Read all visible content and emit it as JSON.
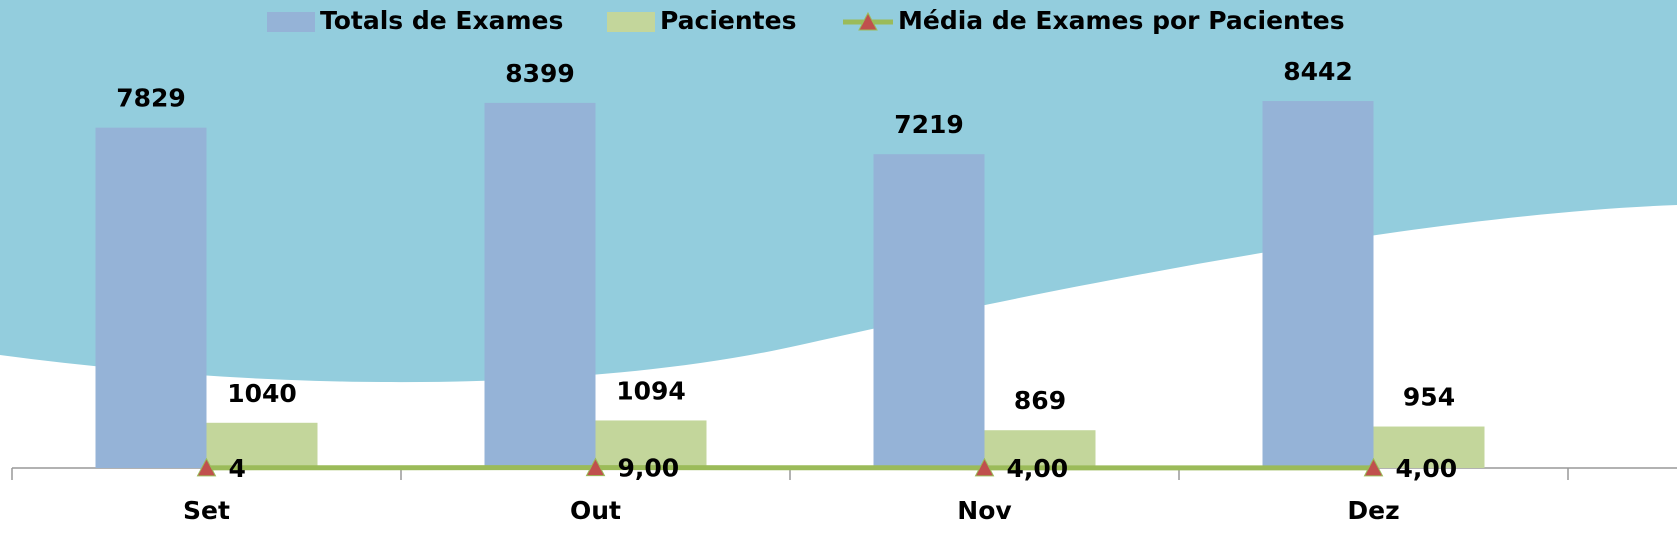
{
  "chart_data": {
    "type": "bar-line",
    "categories": [
      "Set",
      "Out",
      "Nov",
      "Dez"
    ],
    "series": [
      {
        "name": "Totals de Exames",
        "type": "bar",
        "color": "#95b3d7",
        "values": [
          7829,
          8399,
          7219,
          8442
        ]
      },
      {
        "name": "Pacientes",
        "type": "bar",
        "color": "#c3d69b",
        "values": [
          1040,
          1094,
          869,
          954
        ]
      },
      {
        "name": "Média de Exames por Pacientes",
        "type": "line",
        "color": "#9bbb59",
        "marker_color": "#c0504d",
        "values": [
          4,
          9,
          4,
          4
        ],
        "value_labels": [
          "4",
          "9,00",
          "4,00",
          "4,00"
        ]
      }
    ],
    "ylim": [
      0,
      10000
    ],
    "legend": "top"
  }
}
